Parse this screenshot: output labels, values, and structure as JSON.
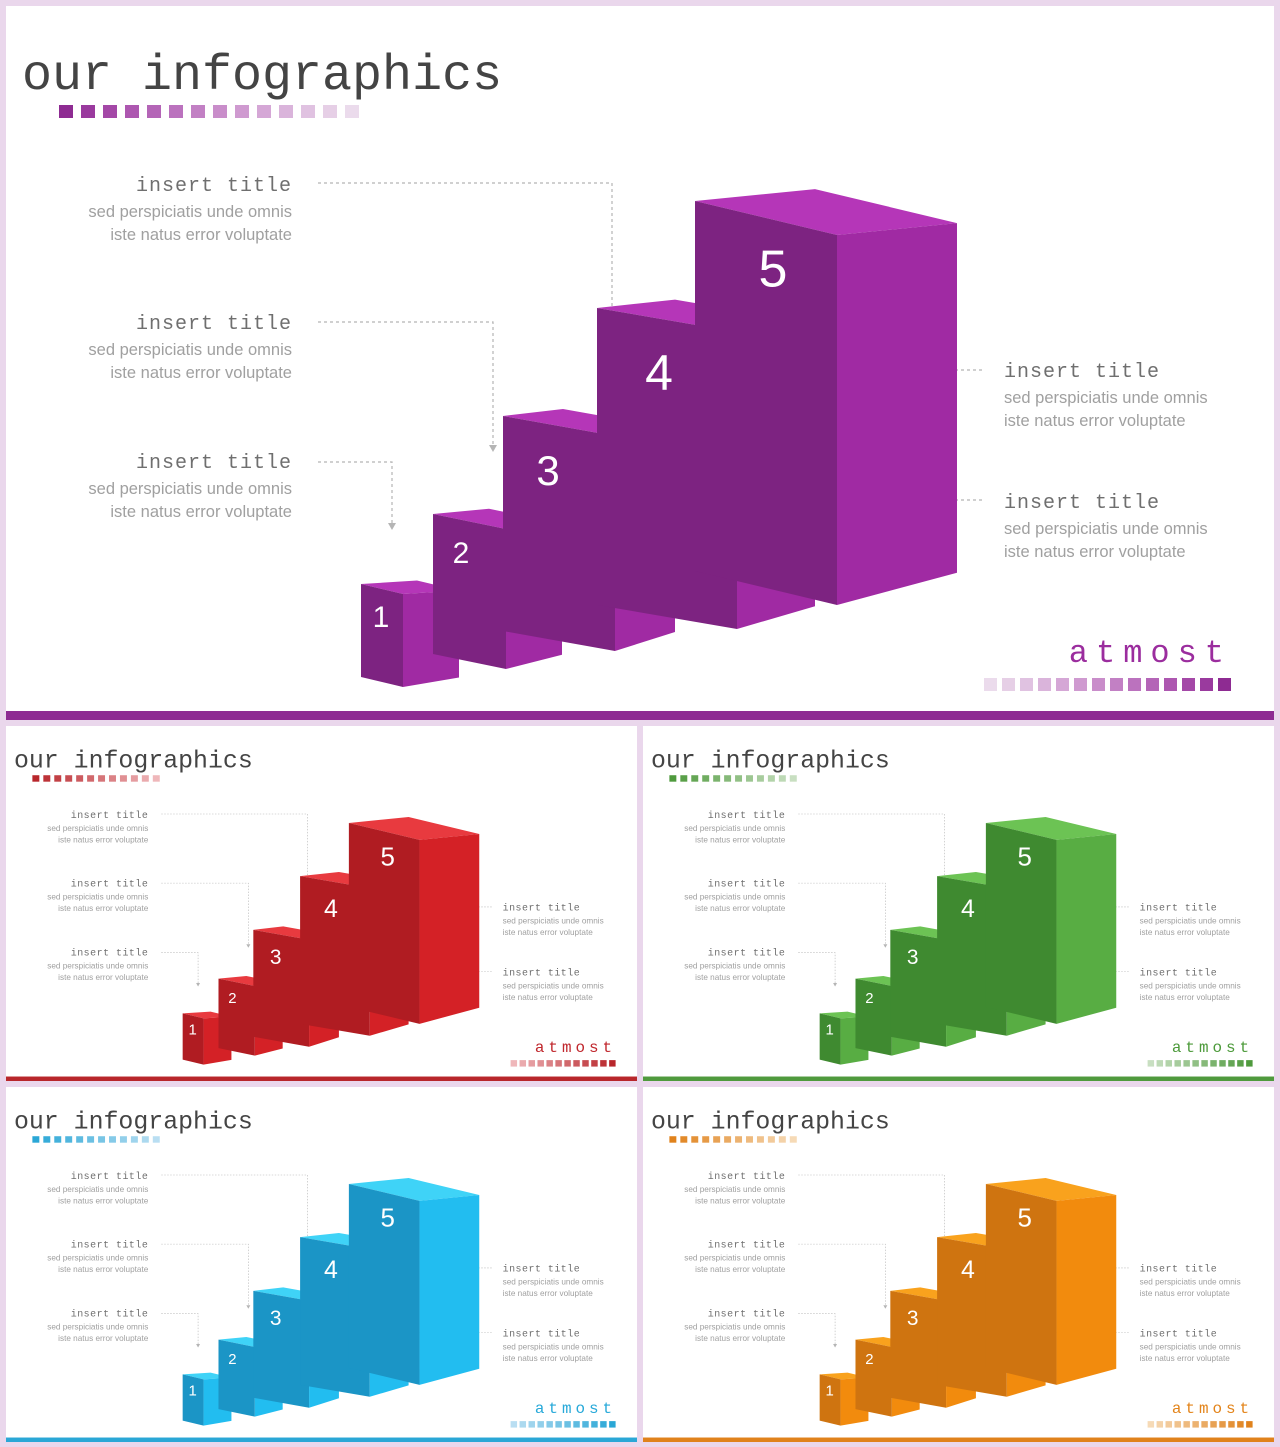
{
  "slides": [
    {
      "title": "our infographics",
      "brand": "atmost",
      "colors": {
        "accent": "#9b2d9e",
        "bar": "#8e2b92",
        "top": "#b536b8",
        "front": "#7d2381",
        "side": "#a02aa3",
        "squares": [
          "#8e2b92",
          "#9a3a9e",
          "#a448a7",
          "#ad57b0",
          "#b465b7",
          "#bb72be",
          "#c280c4",
          "#c98dca",
          "#cf9ad0",
          "#d5a7d6",
          "#dab4db",
          "#e0c2e1",
          "#e6cfe6",
          "#ebdbec"
        ]
      },
      "cubes": [
        "1",
        "2",
        "3",
        "4",
        "5"
      ],
      "items": [
        {
          "title": "insert title",
          "line1": "sed perspiciatis unde omnis",
          "line2": "iste natus error voluptate"
        },
        {
          "title": "insert title",
          "line1": "sed perspiciatis unde omnis",
          "line2": "iste natus error voluptate"
        },
        {
          "title": "insert title",
          "line1": "sed perspiciatis unde omnis",
          "line2": "iste natus error voluptate"
        },
        {
          "title": "insert title",
          "line1": "sed perspiciatis unde omnis",
          "line2": "iste natus error voluptate"
        },
        {
          "title": "insert title",
          "line1": "sed perspiciatis unde omnis",
          "line2": "iste natus error voluptate"
        }
      ]
    },
    {
      "title": "our infographics",
      "brand": "atmost",
      "colors": {
        "accent": "#c0272d",
        "bar": "#b8262b",
        "top": "#e83a3f",
        "front": "#b01c22",
        "side": "#d42126",
        "squares": [
          "#b8262b",
          "#bd3338",
          "#c24045",
          "#c74d52",
          "#cc5a5f",
          "#d1686c",
          "#d67579",
          "#db8286",
          "#e08f93",
          "#e59ca0",
          "#eaaaad",
          "#efb7ba"
        ]
      },
      "cubes": [
        "1",
        "2",
        "3",
        "4",
        "5"
      ],
      "items": [
        {
          "title": "insert title",
          "line1": "sed perspiciatis unde omnis",
          "line2": "iste natus error voluptate"
        },
        {
          "title": "insert title",
          "line1": "sed perspiciatis unde omnis",
          "line2": "iste natus error voluptate"
        },
        {
          "title": "insert title",
          "line1": "sed perspiciatis unde omnis",
          "line2": "iste natus error voluptate"
        },
        {
          "title": "insert title",
          "line1": "sed perspiciatis unde omnis",
          "line2": "iste natus error voluptate"
        },
        {
          "title": "insert title",
          "line1": "sed perspiciatis unde omnis",
          "line2": "iste natus error voluptate"
        }
      ]
    },
    {
      "title": "our infographics",
      "brand": "atmost",
      "colors": {
        "accent": "#4c9a3a",
        "bar": "#4f9a3d",
        "top": "#6cc354",
        "front": "#3f8a30",
        "side": "#58ad43",
        "squares": [
          "#4f9a3d",
          "#5aa049",
          "#65a655",
          "#70ad61",
          "#7bb36d",
          "#86b979",
          "#91c085",
          "#9cc691",
          "#a7cc9d",
          "#b2d3a9",
          "#bdd9b5",
          "#c8dfc1"
        ]
      },
      "cubes": [
        "1",
        "2",
        "3",
        "4",
        "5"
      ],
      "items": [
        {
          "title": "insert title",
          "line1": "sed perspiciatis unde omnis",
          "line2": "iste natus error voluptate"
        },
        {
          "title": "insert title",
          "line1": "sed perspiciatis unde omnis",
          "line2": "iste natus error voluptate"
        },
        {
          "title": "insert title",
          "line1": "sed perspiciatis unde omnis",
          "line2": "iste natus error voluptate"
        },
        {
          "title": "insert title",
          "line1": "sed perspiciatis unde omnis",
          "line2": "iste natus error voluptate"
        },
        {
          "title": "insert title",
          "line1": "sed perspiciatis unde omnis",
          "line2": "iste natus error voluptate"
        }
      ]
    },
    {
      "title": "our infographics",
      "brand": "atmost",
      "colors": {
        "accent": "#27a9d9",
        "bar": "#2aa7d6",
        "top": "#3fd3f7",
        "front": "#1b95c6",
        "side": "#22bdf0",
        "squares": [
          "#2aa7d6",
          "#37acd9",
          "#44b1db",
          "#51b6de",
          "#5ebbe0",
          "#6bc0e3",
          "#78c5e5",
          "#85cae8",
          "#92cfea",
          "#9fd4ed",
          "#acd9ef",
          "#b9def2"
        ]
      },
      "cubes": [
        "1",
        "2",
        "3",
        "4",
        "5"
      ],
      "items": [
        {
          "title": "insert title",
          "line1": "sed perspiciatis unde omnis",
          "line2": "iste natus error voluptate"
        },
        {
          "title": "insert title",
          "line1": "sed perspiciatis unde omnis",
          "line2": "iste natus error voluptate"
        },
        {
          "title": "insert title",
          "line1": "sed perspiciatis unde omnis",
          "line2": "iste natus error voluptate"
        },
        {
          "title": "insert title",
          "line1": "sed perspiciatis unde omnis",
          "line2": "iste natus error voluptate"
        },
        {
          "title": "insert title",
          "line1": "sed perspiciatis unde omnis",
          "line2": "iste natus error voluptate"
        }
      ]
    },
    {
      "title": "our infographics",
      "brand": "atmost",
      "colors": {
        "accent": "#e3841a",
        "bar": "#e0821c",
        "top": "#f9a21d",
        "front": "#cf7410",
        "side": "#f28b0d",
        "squares": [
          "#e0821c",
          "#e28a2a",
          "#e49238",
          "#e69a46",
          "#e8a254",
          "#eaaa62",
          "#ecb270",
          "#eeba7e",
          "#f0c28c",
          "#f2ca9a",
          "#f4d2a8",
          "#f6dab6"
        ]
      },
      "cubes": [
        "1",
        "2",
        "3",
        "4",
        "5"
      ],
      "items": [
        {
          "title": "insert title",
          "line1": "sed perspiciatis unde omnis",
          "line2": "iste natus error voluptate"
        },
        {
          "title": "insert title",
          "line1": "sed perspiciatis unde omnis",
          "line2": "iste natus error voluptate"
        },
        {
          "title": "insert title",
          "line1": "sed perspiciatis unde omnis",
          "line2": "iste natus error voluptate"
        },
        {
          "title": "insert title",
          "line1": "sed perspiciatis unde omnis",
          "line2": "iste natus error voluptate"
        },
        {
          "title": "insert title",
          "line1": "sed perspiciatis unde omnis",
          "line2": "iste natus error voluptate"
        }
      ]
    }
  ]
}
